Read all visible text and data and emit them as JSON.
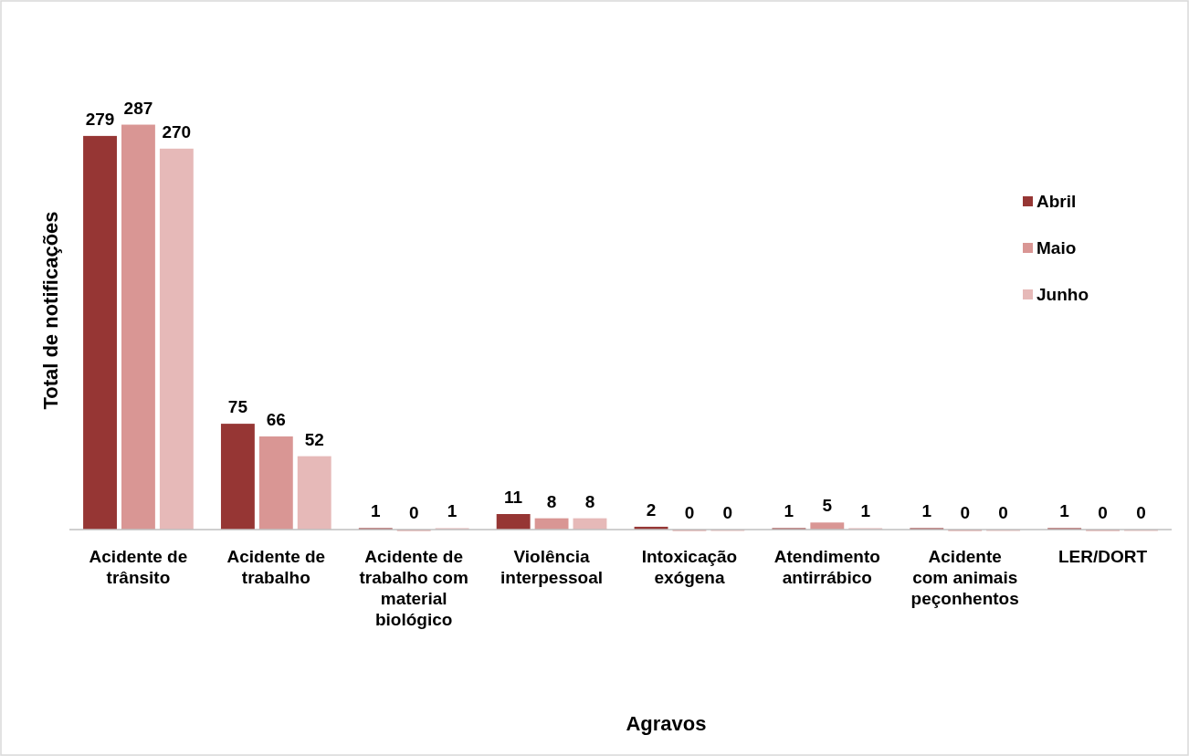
{
  "chart_data": {
    "type": "bar",
    "xlabel": "Agravos",
    "ylabel": "Total de notificações",
    "categories": [
      "Acidente de\ntrânsito",
      "Acidente de\ntrabalho",
      "Acidente de\ntrabalho com\nmaterial\nbiológico",
      "Violência\ninterpessoal",
      "Intoxicação\nexógena",
      "Atendimento\nantirrábico",
      "Acidente\ncom animais\npeçonhentos",
      "LER/DORT"
    ],
    "series": [
      {
        "name": "Abril",
        "color": "#963634",
        "values": [
          279,
          75,
          1,
          11,
          2,
          1,
          1,
          1
        ]
      },
      {
        "name": "Maio",
        "color": "#d99694",
        "values": [
          287,
          66,
          0,
          8,
          0,
          5,
          0,
          0
        ]
      },
      {
        "name": "Junho",
        "color": "#e6b9b8",
        "values": [
          270,
          52,
          1,
          8,
          0,
          1,
          0,
          0
        ]
      }
    ],
    "tick_labels": "x",
    "data_labels": true,
    "legend": "right"
  }
}
